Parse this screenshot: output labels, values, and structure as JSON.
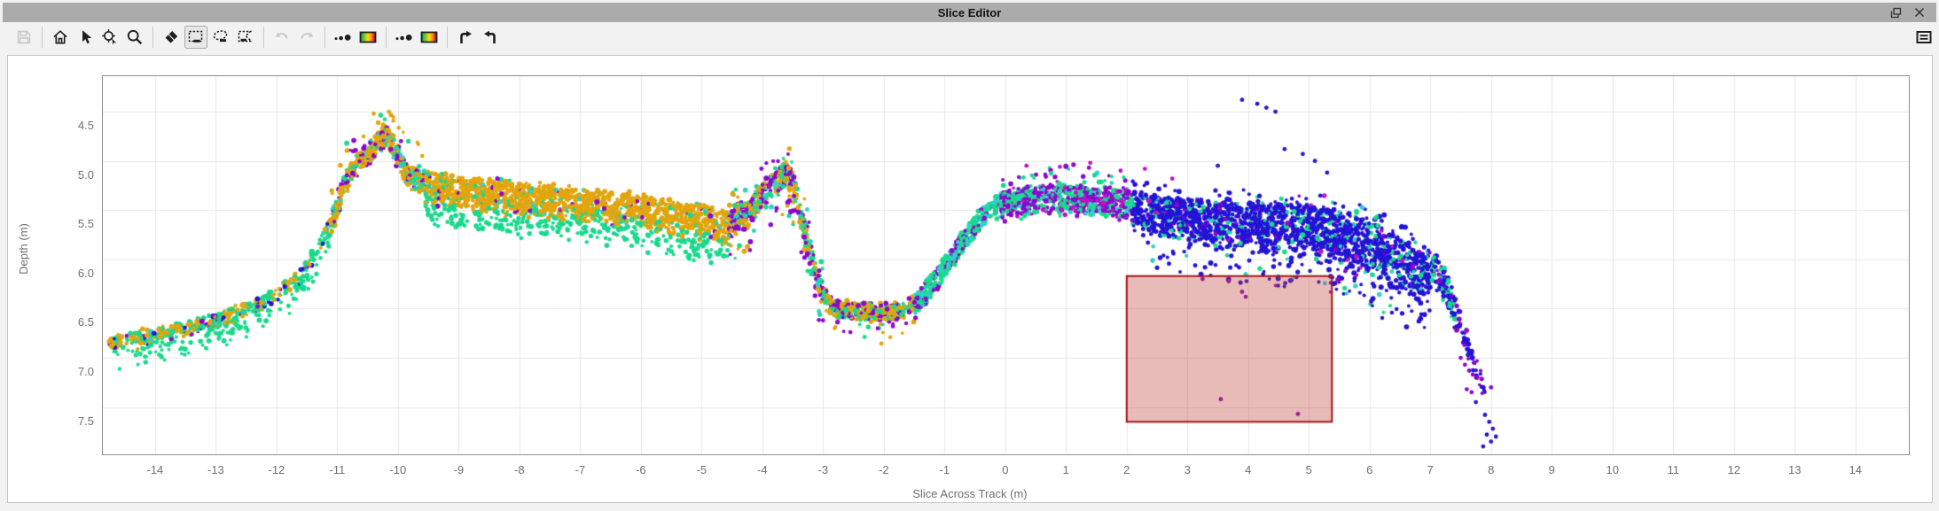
{
  "window": {
    "title": "Slice Editor"
  },
  "titlebar": {
    "icons": [
      {
        "icon": "float-window-icon",
        "name": "float-window-button"
      },
      {
        "icon": "close-icon",
        "name": "close-button"
      }
    ]
  },
  "toolbar": {
    "groups": [
      [
        {
          "icon": "save-icon",
          "name": "save-button",
          "state": "disabled"
        }
      ],
      [
        {
          "icon": "home-icon",
          "name": "home-view-button",
          "state": "enabled"
        },
        {
          "icon": "pointer-icon",
          "name": "select-tool-button",
          "state": "enabled"
        },
        {
          "icon": "zoom-target-icon",
          "name": "zoom-to-area-button",
          "state": "enabled"
        },
        {
          "icon": "magnifier-icon",
          "name": "zoom-tool-button",
          "state": "enabled"
        }
      ],
      [
        {
          "icon": "eraser-icon",
          "name": "erase-tool-button",
          "state": "enabled"
        },
        {
          "icon": "rect-select-icon",
          "name": "rectangle-select-button",
          "state": "active"
        },
        {
          "icon": "lasso-select-icon",
          "name": "lasso-select-button",
          "state": "enabled"
        },
        {
          "icon": "polygon-select-icon",
          "name": "polygon-select-button",
          "state": "enabled"
        }
      ],
      [
        {
          "icon": "undo-icon",
          "name": "undo-button",
          "state": "disabled"
        },
        {
          "icon": "redo-icon",
          "name": "redo-button",
          "state": "disabled"
        }
      ],
      [
        {
          "icon": "point-size-icon",
          "name": "point-size-button",
          "state": "enabled"
        },
        {
          "icon": "colormap-icon",
          "name": "color-by-button",
          "state": "enabled"
        }
      ],
      [
        {
          "icon": "point-size-icon",
          "name": "point-size-alt-button",
          "state": "enabled"
        },
        {
          "icon": "colormap-icon",
          "name": "colormap-alt-button",
          "state": "enabled"
        }
      ],
      [
        {
          "icon": "bend-arrow-right-icon",
          "name": "next-slice-button",
          "state": "enabled"
        },
        {
          "icon": "bend-arrow-left-icon",
          "name": "previous-slice-button",
          "state": "enabled"
        }
      ]
    ],
    "right": [
      {
        "icon": "message-log-icon",
        "name": "message-log-button",
        "state": "enabled"
      }
    ]
  },
  "chart_data": {
    "type": "scatter",
    "title": "",
    "xlabel": "Slice Across Track (m)",
    "ylabel": "Depth (m)",
    "x_ticks": [
      -14,
      -13,
      -12,
      -11,
      -10,
      -9,
      -8,
      -7,
      -6,
      -5,
      -4,
      -3,
      -2,
      -1,
      0,
      1,
      2,
      3,
      4,
      5,
      6,
      7,
      8,
      9,
      10,
      11,
      12,
      13,
      14
    ],
    "y_ticks": [
      "4.5",
      "5.0",
      "5.5",
      "6.0",
      "6.5",
      "7.0",
      "7.5"
    ],
    "x_range": [
      -14.86,
      14.88
    ],
    "depth_range": [
      4.14,
      7.98
    ],
    "y_axis_inverted": true,
    "grid": true,
    "grid_color": "#e7e7e7",
    "colors": {
      "gold": "#E3A50D",
      "green": "#19D98D",
      "teal": "#2ED3C6",
      "purple": "#8A07CF",
      "blue": "#2413D4",
      "magenta": "#BC14C4"
    },
    "profile": [
      [
        -14.76,
        6.8
      ],
      [
        -14.2,
        6.72
      ],
      [
        -13.5,
        6.64
      ],
      [
        -13.0,
        6.56
      ],
      [
        -12.5,
        6.44
      ],
      [
        -12.0,
        6.3
      ],
      [
        -11.6,
        6.1
      ],
      [
        -11.3,
        5.8
      ],
      [
        -11.05,
        5.45
      ],
      [
        -10.85,
        5.1
      ],
      [
        -10.65,
        4.92
      ],
      [
        -10.45,
        4.8
      ],
      [
        -10.2,
        4.62
      ],
      [
        -10.0,
        4.85
      ],
      [
        -9.85,
        5.05
      ],
      [
        -9.55,
        5.12
      ],
      [
        -9.0,
        5.15
      ],
      [
        -8.0,
        5.22
      ],
      [
        -7.0,
        5.28
      ],
      [
        -6.0,
        5.35
      ],
      [
        -5.0,
        5.45
      ],
      [
        -4.55,
        5.52
      ],
      [
        -4.2,
        5.4
      ],
      [
        -3.9,
        5.15
      ],
      [
        -3.6,
        5.0
      ],
      [
        -3.45,
        5.2
      ],
      [
        -3.3,
        5.6
      ],
      [
        -3.15,
        5.95
      ],
      [
        -3.0,
        6.25
      ],
      [
        -2.85,
        6.42
      ],
      [
        -2.2,
        6.46
      ],
      [
        -1.7,
        6.45
      ],
      [
        -1.45,
        6.34
      ],
      [
        -1.2,
        6.16
      ],
      [
        -0.9,
        5.9
      ],
      [
        -0.6,
        5.64
      ],
      [
        -0.3,
        5.42
      ],
      [
        0.0,
        5.3
      ],
      [
        0.5,
        5.26
      ],
      [
        1.0,
        5.25
      ],
      [
        1.5,
        5.28
      ],
      [
        2.0,
        5.31
      ],
      [
        2.6,
        5.36
      ],
      [
        3.2,
        5.4
      ],
      [
        4.0,
        5.44
      ],
      [
        4.8,
        5.42
      ],
      [
        5.5,
        5.52
      ],
      [
        6.0,
        5.62
      ],
      [
        6.5,
        5.76
      ],
      [
        7.0,
        5.92
      ],
      [
        7.2,
        6.05
      ],
      [
        7.35,
        6.28
      ],
      [
        7.5,
        6.52
      ],
      [
        7.65,
        6.82
      ],
      [
        7.8,
        7.08
      ],
      [
        7.9,
        7.25
      ]
    ],
    "segments": [
      {
        "x": [
          -14.76,
          -11.1
        ],
        "thickness": 0.13,
        "density": 150,
        "weights": {
          "green": 0.42,
          "gold": 0.38,
          "blue": 0.12,
          "purple": 0.05,
          "teal": 0.03
        },
        "fringe_below": {
          "prob": 0.25,
          "color": "green",
          "max": 0.18,
          "wave": true
        }
      },
      {
        "x": [
          -11.1,
          -9.55
        ],
        "thickness": 0.2,
        "density": 300,
        "weights": {
          "gold": 0.5,
          "green": 0.22,
          "purple": 0.18,
          "teal": 0.1
        },
        "scatter_above": {
          "prob": 0.06,
          "max": 0.28
        }
      },
      {
        "x": [
          -9.55,
          -4.55
        ],
        "thickness": 0.3,
        "density": 330,
        "weights": {
          "gold": 0.84,
          "green": 0.1,
          "teal": 0.03,
          "purple": 0.03
        },
        "fringe_below": {
          "prob": 0.2,
          "color": "green",
          "max": 0.2,
          "wave": true
        }
      },
      {
        "x": [
          -4.55,
          -3.0
        ],
        "thickness": 0.24,
        "density": 330,
        "weights": {
          "purple": 0.38,
          "gold": 0.3,
          "green": 0.22,
          "teal": 0.1
        },
        "scatter_below": {
          "prob": 0.06,
          "max": 0.3
        },
        "scatter_above": {
          "prob": 0.05,
          "max": 0.2
        }
      },
      {
        "x": [
          -3.0,
          -1.5
        ],
        "thickness": 0.15,
        "density": 280,
        "weights": {
          "gold": 0.5,
          "green": 0.28,
          "purple": 0.22
        },
        "scatter_below": {
          "prob": 0.04,
          "max": 0.28
        }
      },
      {
        "x": [
          -1.5,
          -0.05
        ],
        "thickness": 0.2,
        "density": 280,
        "weights": {
          "green": 0.45,
          "teal": 0.3,
          "purple": 0.25
        }
      },
      {
        "x": [
          -0.05,
          2.1
        ],
        "thickness": 0.26,
        "density": 330,
        "weights": {
          "purple": 0.42,
          "green": 0.34,
          "teal": 0.12,
          "magenta": 0.12
        },
        "scatter_above": {
          "prob": 0.06,
          "max": 0.22
        }
      },
      {
        "x": [
          2.1,
          7.0
        ],
        "thickness": [
          0.35,
          0.55
        ],
        "density": 380,
        "weights": {
          "blue": 0.8,
          "green": 0.12,
          "teal": 0.03,
          "purple": 0.03,
          "magenta": 0.02
        },
        "scatter_below": {
          "prob": 0.07,
          "max": 0.35
        },
        "scatter_above": {
          "prob": 0.03,
          "max": 0.15
        }
      },
      {
        "x": [
          7.0,
          7.45
        ],
        "thickness": 0.3,
        "density": 220,
        "weights": {
          "green": 0.4,
          "blue": 0.45,
          "purple": 0.15
        }
      },
      {
        "x": [
          7.45,
          7.9
        ],
        "thickness": 0.22,
        "density": 100,
        "weights": {
          "blue": 0.62,
          "purple": 0.38
        }
      }
    ],
    "outliers": [
      {
        "color": "blue",
        "points": [
          [
            3.9,
            4.38
          ],
          [
            4.15,
            4.42
          ],
          [
            4.3,
            4.46
          ],
          [
            4.45,
            4.5
          ],
          [
            4.6,
            4.88
          ],
          [
            4.9,
            4.93
          ],
          [
            5.1,
            5.0
          ],
          [
            5.3,
            5.12
          ],
          [
            3.5,
            5.05
          ]
        ]
      },
      {
        "color": "magenta",
        "points": [
          [
            0.35,
            5.05
          ],
          [
            0.9,
            5.06
          ],
          [
            1.4,
            5.02
          ],
          [
            1.9,
            5.1
          ],
          [
            2.3,
            5.08
          ],
          [
            2.75,
            5.18
          ]
        ]
      },
      {
        "color": "purple",
        "points": [
          [
            3.9,
            6.33
          ],
          [
            3.96,
            6.38
          ],
          [
            3.55,
            7.42
          ],
          [
            4.82,
            7.57
          ],
          [
            3.25,
            6.2
          ],
          [
            5.6,
            6.12
          ],
          [
            5.78,
            6.16
          ],
          [
            -2.55,
            6.74
          ],
          [
            -2.1,
            6.7
          ],
          [
            -3.0,
            6.62
          ],
          [
            -1.85,
            6.68
          ],
          [
            -10.55,
            4.85
          ],
          [
            -9.95,
            4.8
          ],
          [
            7.5,
            7.0
          ],
          [
            7.57,
            7.07
          ],
          [
            7.64,
            7.13
          ],
          [
            7.7,
            7.17
          ],
          [
            7.77,
            7.2
          ],
          [
            7.6,
            7.32
          ],
          [
            7.68,
            7.35
          ],
          [
            8.0,
            7.3
          ]
        ]
      },
      {
        "color": "gold",
        "points": [
          [
            -10.4,
            4.52
          ],
          [
            -10.15,
            4.5
          ],
          [
            -9.6,
            4.95
          ]
        ]
      },
      {
        "color": "blue",
        "points": [
          [
            7.9,
            7.58
          ],
          [
            7.97,
            7.65
          ],
          [
            8.03,
            7.72
          ],
          [
            7.93,
            7.78
          ],
          [
            8.0,
            7.85
          ],
          [
            7.87,
            7.9
          ],
          [
            8.08,
            7.8
          ],
          [
            7.75,
            7.45
          ]
        ]
      }
    ],
    "selection_rectangle": {
      "x": [
        2.0,
        5.38
      ],
      "depth": [
        6.17,
        7.65
      ],
      "fill": "rgba(190,60,55,0.35)",
      "stroke": "#A31515"
    }
  }
}
